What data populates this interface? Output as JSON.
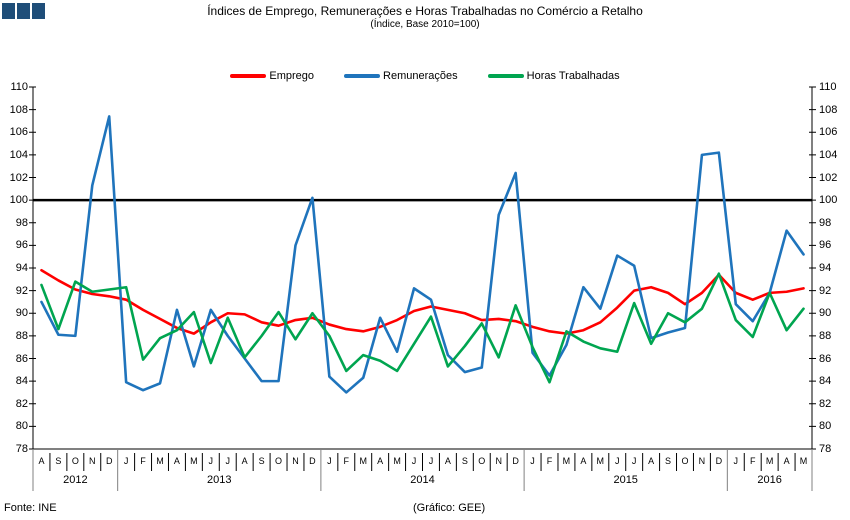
{
  "header": {
    "title": "Índices de Emprego, Remunerações e Horas Trabalhadas no Comércio a Retalho",
    "subtitle": "(Índice, Base 2010=100)",
    "logo_color": "#1f4e79"
  },
  "legend": [
    {
      "label": "Emprego",
      "color": "#ff0000"
    },
    {
      "label": "Remunerações",
      "color": "#1f74bc"
    },
    {
      "label": "Horas Trabalhadas",
      "color": "#00a550"
    }
  ],
  "footer": {
    "source": "Fonte: INE",
    "credit": "(Gráfico: GEE)"
  },
  "chart_data": {
    "type": "line",
    "title": "Índices de Emprego, Remunerações e Horas Trabalhadas no Comércio a Retalho",
    "subtitle": "(Índice, Base 2010=100)",
    "ylim": [
      78,
      110
    ],
    "ytick_step": 2,
    "reference_line": 100,
    "grid": false,
    "legend_position": "top",
    "axis_labels_both_sides": true,
    "years": [
      {
        "label": "2012",
        "months": [
          "A",
          "S",
          "O",
          "N",
          "D"
        ]
      },
      {
        "label": "2013",
        "months": [
          "J",
          "F",
          "M",
          "A",
          "M",
          "J",
          "J",
          "A",
          "S",
          "O",
          "N",
          "D"
        ]
      },
      {
        "label": "2014",
        "months": [
          "J",
          "F",
          "M",
          "A",
          "M",
          "J",
          "J",
          "A",
          "S",
          "O",
          "N",
          "D"
        ]
      },
      {
        "label": "2015",
        "months": [
          "J",
          "F",
          "M",
          "A",
          "M",
          "J",
          "J",
          "A",
          "S",
          "O",
          "N",
          "D"
        ]
      },
      {
        "label": "2016",
        "months": [
          "J",
          "F",
          "M",
          "A",
          "M"
        ]
      }
    ],
    "series": [
      {
        "name": "Emprego",
        "color": "#ff0000",
        "values": [
          93.8,
          92.9,
          92.1,
          91.7,
          91.5,
          91.2,
          90.3,
          89.5,
          88.7,
          88.2,
          89.2,
          90.0,
          89.9,
          89.2,
          88.9,
          89.4,
          89.6,
          89.0,
          88.6,
          88.4,
          88.8,
          89.4,
          90.2,
          90.6,
          90.3,
          90.0,
          89.4,
          89.5,
          89.3,
          88.8,
          88.4,
          88.2,
          88.5,
          89.2,
          90.5,
          92.0,
          92.3,
          91.8,
          90.8,
          91.8,
          93.4,
          91.8,
          91.2,
          91.8,
          91.9,
          92.2
        ]
      },
      {
        "name": "Remunerações",
        "color": "#1f74bc",
        "values": [
          91.0,
          88.1,
          88.0,
          101.3,
          107.4,
          83.9,
          83.2,
          83.8,
          90.3,
          85.3,
          90.3,
          88.0,
          86.0,
          84.0,
          84.0,
          96.0,
          100.2,
          84.4,
          83.0,
          84.3,
          89.6,
          86.6,
          92.2,
          91.2,
          86.3,
          84.8,
          85.2,
          98.7,
          102.4,
          86.5,
          84.5,
          87.2,
          92.3,
          90.4,
          95.1,
          94.2,
          87.8,
          88.3,
          88.7,
          104.0,
          104.2,
          90.8,
          89.3,
          91.8,
          97.3,
          95.2
        ]
      },
      {
        "name": "Horas Trabalhadas",
        "color": "#00a550",
        "values": [
          92.5,
          88.6,
          92.8,
          91.9,
          92.1,
          92.3,
          85.9,
          87.8,
          88.5,
          90.1,
          85.6,
          89.6,
          86.1,
          88.0,
          90.1,
          87.7,
          90.0,
          88.0,
          84.9,
          86.3,
          85.8,
          84.9,
          87.3,
          89.7,
          85.3,
          87.1,
          89.1,
          86.1,
          90.7,
          87.0,
          83.9,
          88.4,
          87.5,
          86.9,
          86.6,
          90.9,
          87.3,
          90.0,
          89.2,
          90.4,
          93.5,
          89.4,
          87.9,
          91.8,
          88.5,
          90.4
        ]
      }
    ]
  }
}
